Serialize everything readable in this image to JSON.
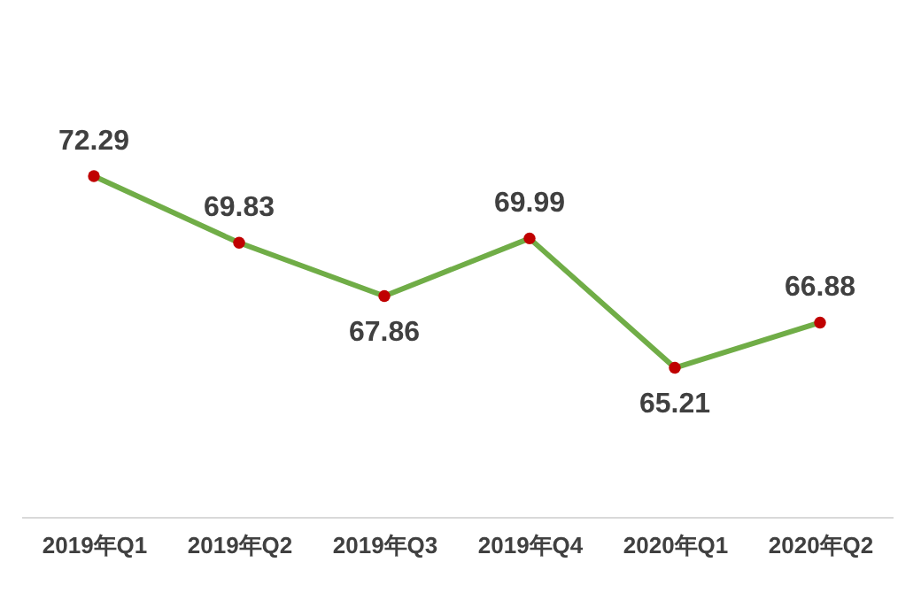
{
  "chart_data": {
    "type": "line",
    "categories": [
      "2019年Q1",
      "2019年Q2",
      "2019年Q3",
      "2019年Q4",
      "2020年Q1",
      "2020年Q2"
    ],
    "series": [
      {
        "color": "#70ad47",
        "values": [
          72.29,
          69.83,
          67.86,
          69.99,
          65.21,
          66.88
        ]
      }
    ],
    "ylim": [
      59.7,
      78.8
    ],
    "tick_labels": "x",
    "marker": "circle",
    "line_style": "solid",
    "data_labels": true
  }
}
